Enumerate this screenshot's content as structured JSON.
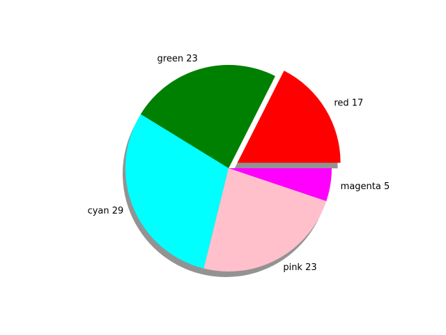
{
  "chart_data": {
    "type": "pie",
    "title": "",
    "slices": [
      {
        "label": "red 17",
        "name": "red",
        "value": 17,
        "color": "#ff0000",
        "exploded": true
      },
      {
        "label": "green 23",
        "name": "green",
        "value": 23,
        "color": "#008000",
        "exploded": false
      },
      {
        "label": "cyan 29",
        "name": "cyan",
        "value": 29,
        "color": "#00ffff",
        "exploded": false
      },
      {
        "label": "pink 23",
        "name": "pink",
        "value": 23,
        "color": "#ffc0cb",
        "exploded": false
      },
      {
        "label": "magenta 5",
        "name": "magenta",
        "value": 5,
        "color": "#ff00ff",
        "exploded": false
      }
    ],
    "start_angle_deg": 0,
    "direction": "counterclockwise",
    "shadow": true,
    "shadow_color": "#808080"
  }
}
